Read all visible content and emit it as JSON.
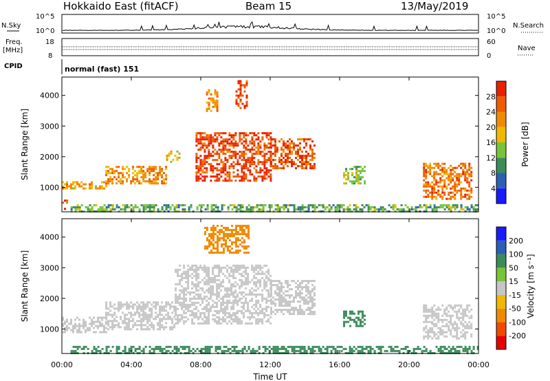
{
  "header": {
    "radar": "Hokkaido East (fitACF)",
    "beam": "Beam 15",
    "date": "13/May/2019"
  },
  "top_strip": {
    "nsky_label": "N.Sky",
    "nsearch_label": "N.Search",
    "freq_label": "Freq.",
    "freq_unit": "[MHz]",
    "nave_label": "Nave",
    "cpid_label": "CPID",
    "cpid_text": "normal (fast) 151",
    "noise_ticks": [
      "10^5",
      "10^0"
    ],
    "freq_ticks": [
      "18",
      "8"
    ],
    "nave_ticks": [
      "60",
      "0"
    ]
  },
  "colors": {
    "power": [
      "#1a1aff",
      "#2d5fb4",
      "#3c8c5a",
      "#77c43a",
      "#f0b800",
      "#f08a00",
      "#f05a00",
      "#e82000"
    ],
    "velocity": [
      "#e80000",
      "#f04a00",
      "#f08a00",
      "#f0b800",
      "#c6c6c6",
      "#77c43a",
      "#3c8c5a",
      "#2d5fb4",
      "#1a1aff"
    ],
    "ground_scatter": "#c6c6c6"
  },
  "chart_data": [
    {
      "type": "heatmap",
      "name": "power",
      "ylabel": "Slant Range [km]",
      "yticks": [
        "1000",
        "2000",
        "3000",
        "4000"
      ],
      "ylim": [
        200,
        4600
      ],
      "xlim": [
        0,
        24
      ],
      "colorbar_label": "Power [dB]",
      "colorbar_ticks": [
        "4",
        "8",
        "12",
        "16",
        "20",
        "24",
        "28"
      ],
      "colorbar_range": [
        0,
        32
      ],
      "bands": [
        {
          "t0": 0.0,
          "t1": 0.3,
          "r0": 300,
          "r1": 600,
          "value": 26
        },
        {
          "t0": 0.0,
          "t1": 2.5,
          "r0": 950,
          "r1": 1200,
          "value": 20
        },
        {
          "t0": 2.5,
          "t1": 6.0,
          "r0": 1100,
          "r1": 1700,
          "value": 22
        },
        {
          "t0": 6.0,
          "t1": 6.8,
          "r0": 1800,
          "r1": 2200,
          "value": 18
        },
        {
          "t0": 7.7,
          "t1": 12.0,
          "r0": 1200,
          "r1": 2800,
          "value": 28
        },
        {
          "t0": 12.0,
          "t1": 14.6,
          "r0": 1600,
          "r1": 2600,
          "value": 26
        },
        {
          "t0": 8.3,
          "t1": 9.0,
          "r0": 3500,
          "r1": 4200,
          "value": 22
        },
        {
          "t0": 10.0,
          "t1": 10.7,
          "r0": 3600,
          "r1": 4500,
          "value": 28
        },
        {
          "t0": 16.2,
          "t1": 17.4,
          "r0": 1100,
          "r1": 1700,
          "value": 14
        },
        {
          "t0": 20.8,
          "t1": 23.6,
          "r0": 600,
          "r1": 1800,
          "value": 24
        },
        {
          "t0": 0.5,
          "t1": 24.0,
          "r0": 200,
          "r1": 450,
          "value": 12
        }
      ]
    },
    {
      "type": "heatmap",
      "name": "velocity",
      "ylabel": "Slant Range [km]",
      "yticks": [
        "1000",
        "2000",
        "3000",
        "4000"
      ],
      "ylim": [
        200,
        4600
      ],
      "xlim": [
        0,
        24
      ],
      "xlabel": "Time UT",
      "xticks": [
        "00:00",
        "04:00",
        "08:00",
        "12:00",
        "16:00",
        "20:00",
        "00:00"
      ],
      "colorbar_label": "Velocity [m s⁻¹]",
      "colorbar_ticks": [
        "-200",
        "-100",
        "-50",
        "-15",
        "15",
        "50",
        "100",
        "200"
      ],
      "bands": [
        {
          "t0": 0.0,
          "t1": 2.5,
          "r0": 900,
          "r1": 1400,
          "value": 0
        },
        {
          "t0": 2.5,
          "t1": 6.5,
          "r0": 1000,
          "r1": 1900,
          "value": 0
        },
        {
          "t0": 6.5,
          "t1": 12.0,
          "r0": 1200,
          "r1": 3100,
          "value": 0
        },
        {
          "t0": 12.0,
          "t1": 14.6,
          "r0": 1500,
          "r1": 2600,
          "value": 0
        },
        {
          "t0": 16.2,
          "t1": 17.4,
          "r0": 1100,
          "r1": 1600,
          "value": 40
        },
        {
          "t0": 20.8,
          "t1": 23.6,
          "r0": 700,
          "r1": 1800,
          "value": 0
        },
        {
          "t0": 0.5,
          "t1": 24.0,
          "r0": 200,
          "r1": 450,
          "value": 30
        },
        {
          "t0": 8.2,
          "t1": 10.8,
          "r0": 3500,
          "r1": 4400,
          "value": -80
        }
      ]
    }
  ]
}
